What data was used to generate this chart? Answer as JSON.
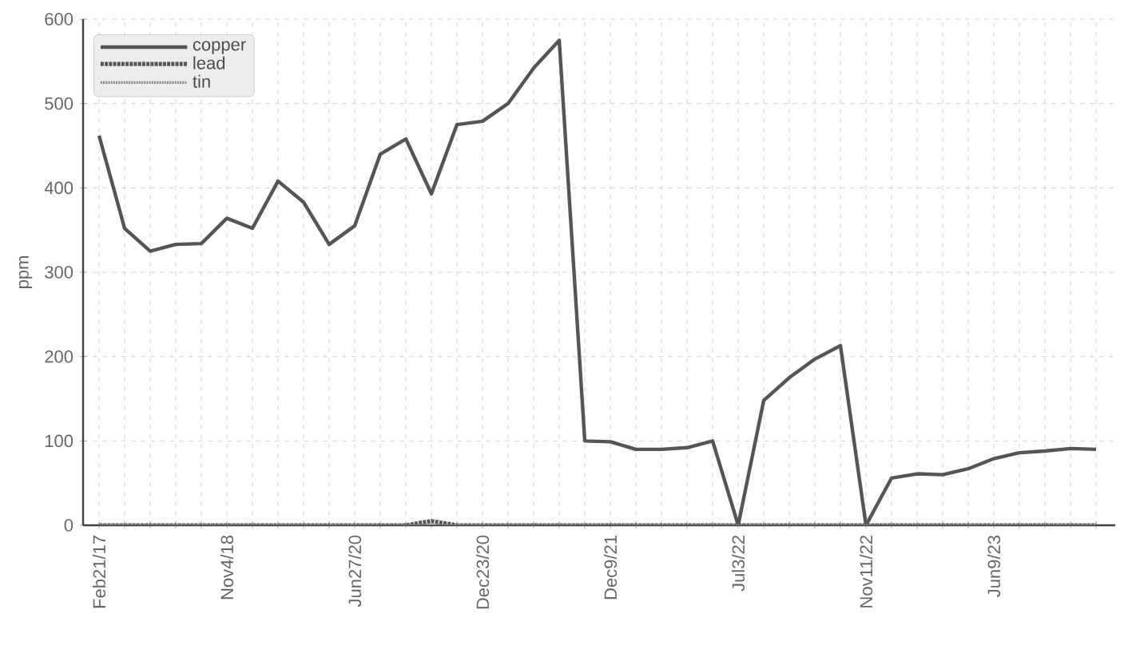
{
  "chart_data": {
    "type": "line",
    "ylabel": "ppm",
    "categories": [
      "Feb21/17",
      null,
      null,
      null,
      null,
      "Nov4/18",
      null,
      null,
      null,
      null,
      "Jun27/20",
      null,
      null,
      null,
      null,
      "Dec23/20",
      null,
      null,
      null,
      null,
      "Dec9/21",
      null,
      null,
      null,
      null,
      "Jul3/22",
      null,
      null,
      null,
      null,
      "Nov11/22",
      null,
      null,
      null,
      null,
      "Jun9/23",
      null,
      null,
      null,
      null
    ],
    "series": [
      {
        "name": "copper",
        "color": "#555555",
        "line_style": "solid",
        "values": [
          462,
          352,
          325,
          333,
          334,
          364,
          352,
          408,
          383,
          333,
          355,
          440,
          458,
          393,
          475,
          479,
          500,
          542,
          575,
          100,
          99,
          90,
          90,
          92,
          100,
          0,
          148,
          175,
          197,
          213,
          0,
          56,
          61,
          60,
          67,
          79,
          86,
          88,
          91,
          90
        ]
      },
      {
        "name": "lead",
        "color": "#555555",
        "line_style": "dashed",
        "values": [
          0,
          0,
          0,
          0,
          0,
          0,
          0,
          0,
          0,
          0,
          0,
          0,
          0,
          5,
          0,
          0,
          0,
          0,
          0,
          0,
          0,
          0,
          0,
          0,
          0,
          0,
          0,
          0,
          0,
          0,
          0,
          0,
          0,
          0,
          0,
          0,
          0,
          0,
          0,
          0
        ]
      },
      {
        "name": "tin",
        "color": "#888888",
        "line_style": "dotted",
        "values": [
          0,
          0,
          0,
          0,
          0,
          0,
          0,
          0,
          0,
          0,
          0,
          0,
          0,
          0,
          0,
          0,
          0,
          0,
          0,
          0,
          0,
          0,
          0,
          0,
          0,
          0,
          0,
          0,
          0,
          0,
          0,
          0,
          0,
          0,
          0,
          0,
          0,
          0,
          0,
          0
        ]
      }
    ],
    "ylim": [
      0,
      600
    ],
    "yticks": [
      0,
      100,
      200,
      300,
      400,
      500,
      600
    ],
    "grid": true,
    "legend": "top left"
  }
}
